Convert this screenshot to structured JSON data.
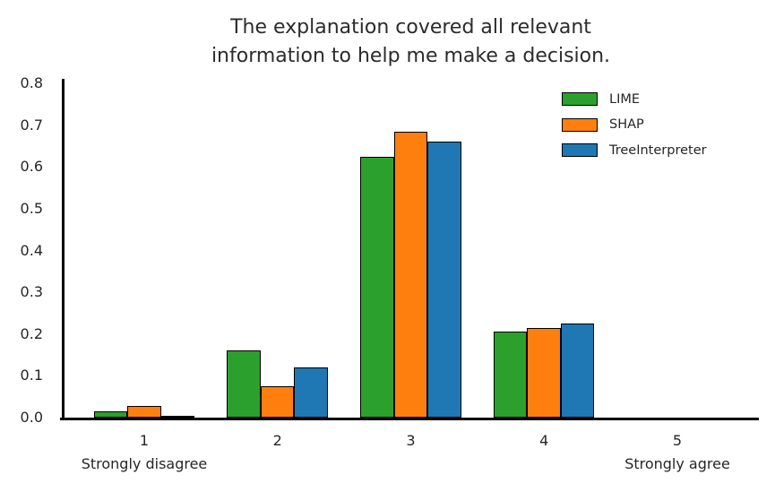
{
  "title": {
    "line1": "The explanation covered all relevant",
    "line2": "information to help me make a decision."
  },
  "chart_data": {
    "type": "bar",
    "title": "The explanation covered all relevant\ninformation to help me make a decision.",
    "categories": [
      "1",
      "2",
      "3",
      "4",
      "5"
    ],
    "category_sublabels": [
      "Strongly disagree",
      "",
      "",
      "",
      "Strongly agree"
    ],
    "series": [
      {
        "name": "LIME",
        "color": "#2ca02c",
        "values": [
          0.015,
          0.16,
          0.625,
          0.205,
          0.0
        ]
      },
      {
        "name": "SHAP",
        "color": "#ff7f0e",
        "values": [
          0.027,
          0.075,
          0.685,
          0.215,
          0.0
        ]
      },
      {
        "name": "TreeInterpreter",
        "color": "#1f77b4",
        "values": [
          0.003,
          0.12,
          0.66,
          0.225,
          0.0
        ]
      }
    ],
    "xlabel": "",
    "ylabel": "",
    "ylim": [
      0.0,
      0.8
    ],
    "yticks": [
      0.0,
      0.1,
      0.2,
      0.3,
      0.4,
      0.5,
      0.6,
      0.7,
      0.8
    ],
    "ytick_labels": [
      "0.0",
      "0.1",
      "0.2",
      "0.3",
      "0.4",
      "0.5",
      "0.6",
      "0.7",
      "0.8"
    ],
    "bar_edge_color": "#000000",
    "legend_position": "upper right",
    "grid": false,
    "spines": [
      "left",
      "bottom"
    ]
  }
}
